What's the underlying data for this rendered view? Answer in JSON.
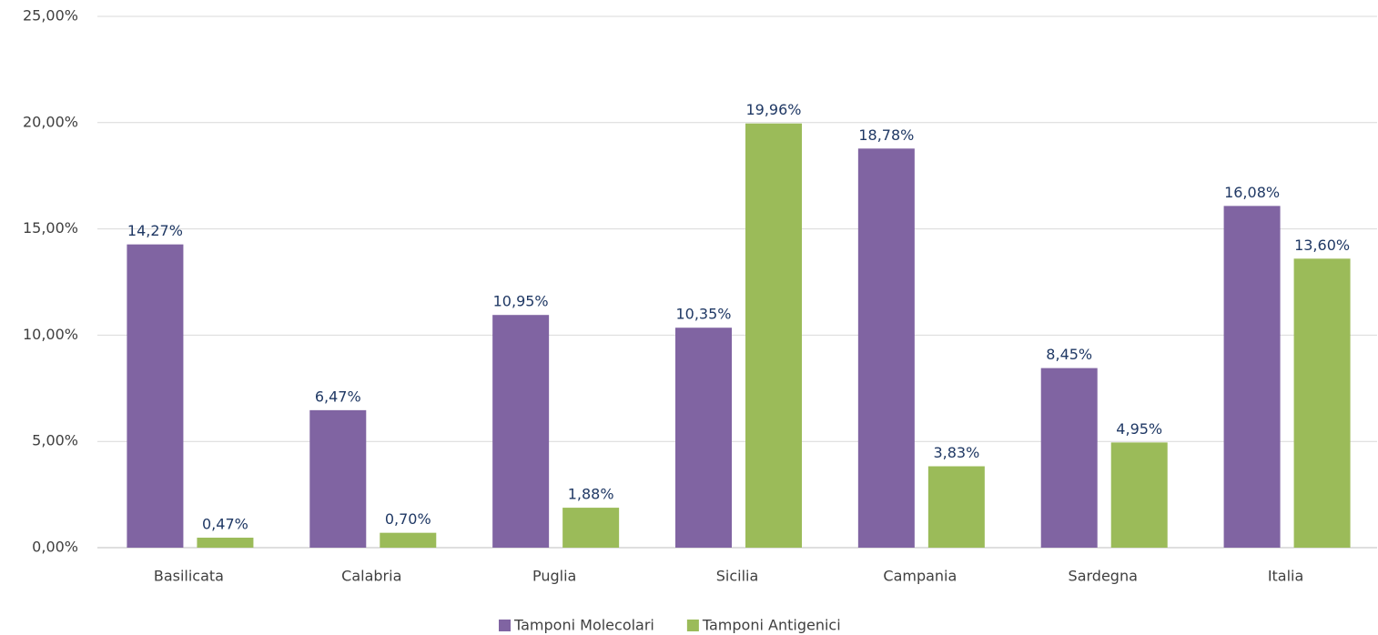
{
  "chart_data": {
    "type": "bar",
    "categories": [
      "Basilicata",
      "Calabria",
      "Puglia",
      "Sicilia",
      "Campania",
      "Sardegna",
      "Italia"
    ],
    "series": [
      {
        "name": "Tamponi Molecolari",
        "color": "#8064a2",
        "values": [
          14.27,
          6.47,
          10.95,
          10.35,
          18.78,
          8.45,
          16.08
        ],
        "value_labels": [
          "14,27%",
          "6,47%",
          "10,95%",
          "10,35%",
          "18,78%",
          "8,45%",
          "16,08%"
        ]
      },
      {
        "name": "Tamponi Antigenici",
        "color": "#9bbb59",
        "values": [
          0.47,
          0.7,
          1.88,
          19.96,
          3.83,
          4.95,
          13.6
        ],
        "value_labels": [
          "0,47%",
          "0,70%",
          "1,88%",
          "19,96%",
          "3,83%",
          "4,95%",
          "13,60%"
        ]
      }
    ],
    "ylim": [
      0,
      25
    ],
    "yticks": [
      {
        "value": 0,
        "label": "0,00%"
      },
      {
        "value": 5,
        "label": "5,00%"
      },
      {
        "value": 10,
        "label": "10,00%"
      },
      {
        "value": 15,
        "label": "15,00%"
      },
      {
        "value": 20,
        "label": "20,00%"
      },
      {
        "value": 25,
        "label": "25,00%"
      }
    ],
    "grid": true,
    "legend": "bottom"
  }
}
